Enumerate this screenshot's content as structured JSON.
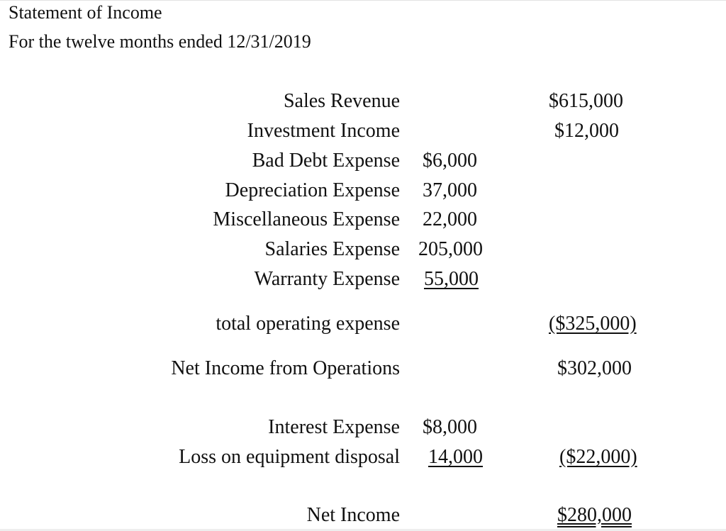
{
  "title": "Statement of Income",
  "subtitle": "For the twelve months ended 12/31/2019",
  "rows": [
    {
      "label": "Sales Revenue",
      "col2": "",
      "col3": "$615,000"
    },
    {
      "label": "Investment Income",
      "col2": "",
      "col3": "$12,000"
    },
    {
      "label": "Bad Debt Expense",
      "col2": "$6,000",
      "col3": ""
    },
    {
      "label": "Depreciation Expense",
      "col2": "37,000",
      "col3": ""
    },
    {
      "label": "Miscellaneous Expense",
      "col2": "22,000",
      "col3": ""
    },
    {
      "label": "Salaries Expense",
      "col2": "205,000",
      "col3": ""
    },
    {
      "label": "Warranty Expense",
      "col2": "55,000",
      "col3": ""
    },
    {
      "label": "total operating expense",
      "col2": "",
      "col3": "($325,000)"
    },
    {
      "label": "Net Income from Operations",
      "col2": "",
      "col3": "$302,000"
    },
    {
      "label": "Interest Expense",
      "col2": "$8,000",
      "col3": ""
    },
    {
      "label": "Loss on equipment disposal",
      "col2": "14,000",
      "col3": "($22,000)"
    },
    {
      "label": "Net Income",
      "col2": "",
      "col3": "$280,000"
    }
  ]
}
